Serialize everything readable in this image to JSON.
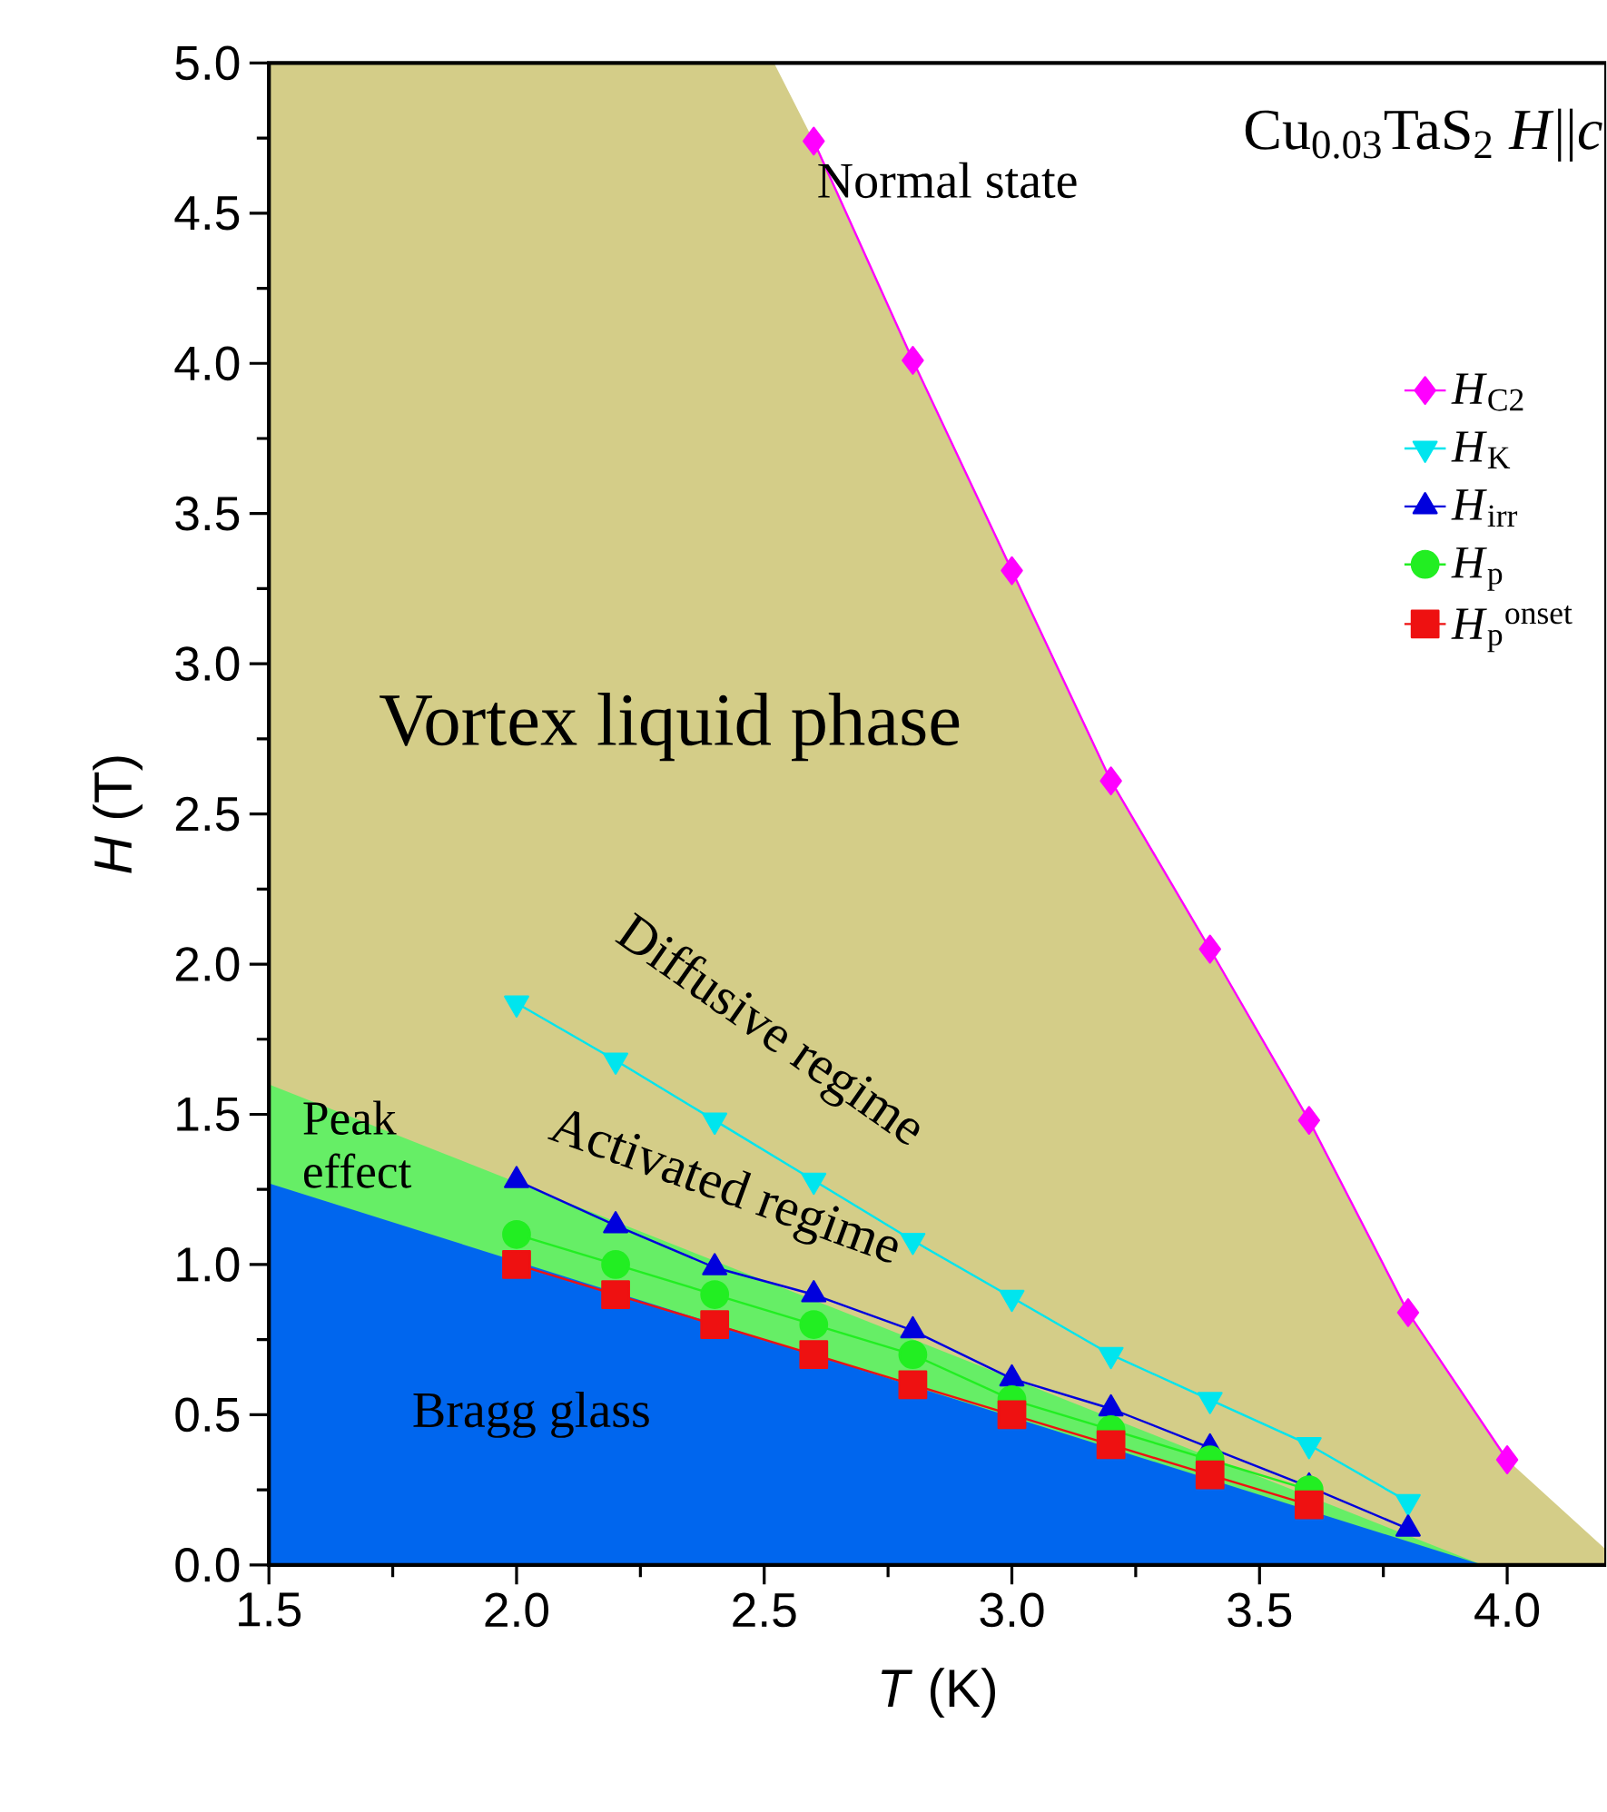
{
  "chart_data": {
    "type": "line",
    "xlabel": "*T* (K)",
    "ylabel": "*H* (T)",
    "xlim": [
      1.5,
      4.2
    ],
    "ylim": [
      0,
      5
    ],
    "xticks": [
      {
        "value": 1.5,
        "label": "1.5"
      },
      {
        "value": 2.0,
        "label": "2.0"
      },
      {
        "value": 2.5,
        "label": "2.5"
      },
      {
        "value": 3.0,
        "label": "3.0"
      },
      {
        "value": 3.5,
        "label": "3.5"
      },
      {
        "value": 4.0,
        "label": "4.0"
      }
    ],
    "yticks": [
      {
        "value": 0,
        "label": "0.0"
      },
      {
        "value": 0.5,
        "label": "0.5"
      },
      {
        "value": 1.0,
        "label": "1.0"
      },
      {
        "value": 1.5,
        "label": "1.5"
      },
      {
        "value": 2.0,
        "label": "2.0"
      },
      {
        "value": 2.5,
        "label": "2.5"
      },
      {
        "value": 3.0,
        "label": "3.0"
      },
      {
        "value": 3.5,
        "label": "3.5"
      },
      {
        "value": 4.0,
        "label": "4.0"
      },
      {
        "value": 4.5,
        "label": "4.5"
      },
      {
        "value": 5.0,
        "label": "5.0"
      }
    ],
    "legend": "top right",
    "annotations": [
      "Cu$_{0.03}$TaS$_{2}$  *H*||*c*",
      "Normal state",
      "Vortex liquid phase",
      "Diffusive regime",
      "Activated regime",
      "Peak effect",
      "Bragg glass"
    ],
    "series": [
      {
        "type": "area",
        "color": "#d4cd88",
        "x": [
          1.5,
          2.52,
          2.6,
          2.8,
          3.0,
          3.2,
          3.4,
          3.6,
          3.8,
          4.0,
          4.2
        ],
        "values": [
          5.0,
          5.0,
          4.74,
          4.01,
          3.31,
          2.61,
          2.05,
          1.48,
          0.84,
          0.35,
          0.05
        ]
      },
      {
        "type": "area",
        "color": "#66ee66",
        "x": [
          1.5,
          3.95
        ],
        "values": [
          1.6,
          0
        ]
      },
      {
        "type": "area",
        "color": "#0066ee",
        "x": [
          1.5,
          3.95
        ],
        "values": [
          1.27,
          0
        ]
      },
      {
        "name": "*H*$_{C2}$",
        "color": "#ff00ff",
        "marker": "diamond",
        "x": [
          2.6,
          2.8,
          3.0,
          3.2,
          3.4,
          3.6,
          3.8,
          4.0
        ],
        "values": [
          4.74,
          4.01,
          3.31,
          2.61,
          2.05,
          1.48,
          0.84,
          0.35
        ]
      },
      {
        "name": "*H*$_{K}$",
        "color": "#00e5ee",
        "marker": "triangle-down",
        "x": [
          2.0,
          2.2,
          2.4,
          2.6,
          2.8,
          3.0,
          3.2,
          3.4,
          3.6,
          3.8
        ],
        "values": [
          1.87,
          1.68,
          1.48,
          1.28,
          1.08,
          0.89,
          0.7,
          0.55,
          0.4,
          0.21
        ]
      },
      {
        "name": "*H*$_{irr}$",
        "color": "#0000dd",
        "marker": "triangle",
        "x": [
          2.0,
          2.2,
          2.4,
          2.6,
          2.8,
          3.0,
          3.2,
          3.4,
          3.6,
          3.8
        ],
        "values": [
          1.28,
          1.13,
          0.99,
          0.9,
          0.78,
          0.62,
          0.52,
          0.39,
          0.26,
          0.12
        ]
      },
      {
        "name": "*H*$_{p}$",
        "color": "#22ee22",
        "marker": "circle",
        "x": [
          2.0,
          2.2,
          2.4,
          2.6,
          2.8,
          3.0,
          3.2,
          3.4,
          3.6
        ],
        "values": [
          1.1,
          1.0,
          0.9,
          0.8,
          0.7,
          0.55,
          0.45,
          0.35,
          0.25
        ]
      },
      {
        "name": "*H*$_{p}$$^{onset}$",
        "color": "#ee1111",
        "marker": "square",
        "x": [
          2.0,
          2.2,
          2.4,
          2.6,
          2.8,
          3.0,
          3.2,
          3.4,
          3.6
        ],
        "values": [
          1.0,
          0.9,
          0.8,
          0.7,
          0.6,
          0.5,
          0.4,
          0.3,
          0.2
        ]
      }
    ]
  }
}
